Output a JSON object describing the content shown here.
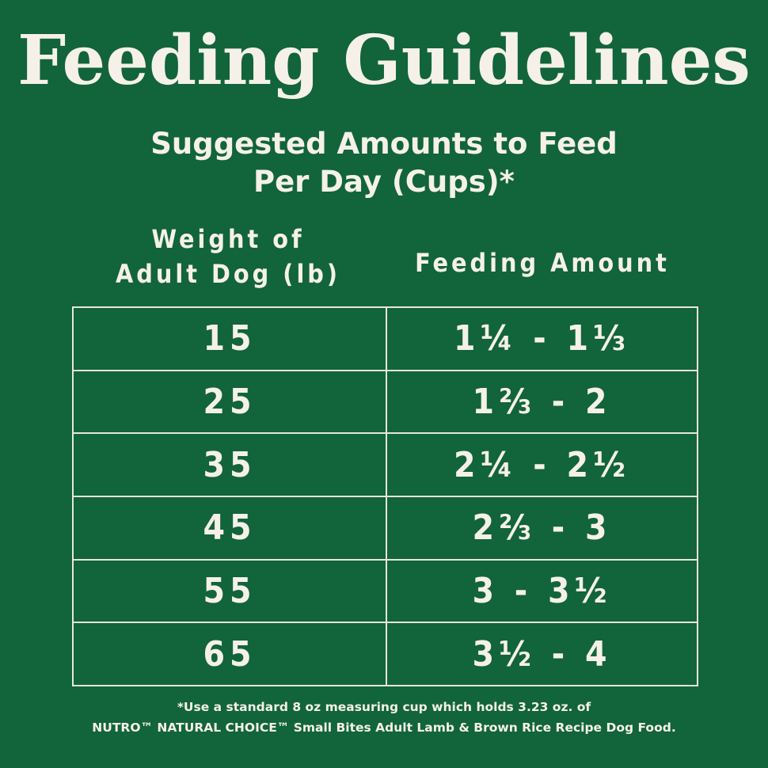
{
  "title": "Feeding Guidelines",
  "subtitle": {
    "line1": "Suggested Amounts to Feed",
    "line2": "Per Day (Cups)*"
  },
  "columns": {
    "weight_line1": "Weight of",
    "weight_line2": "Adult Dog (lb)",
    "amount": "Feeding Amount"
  },
  "rows": [
    {
      "weight": "15",
      "amount": "1¼ - 1⅓"
    },
    {
      "weight": "25",
      "amount": "1⅔ - 2"
    },
    {
      "weight": "35",
      "amount": "2¼ - 2½"
    },
    {
      "weight": "45",
      "amount": "2⅔ - 3"
    },
    {
      "weight": "55",
      "amount": "3 - 3½"
    },
    {
      "weight": "65",
      "amount": "3½ - 4"
    }
  ],
  "footnote": {
    "line1": "*Use a standard 8 oz measuring cup which holds 3.23 oz. of",
    "line2": "NUTRO™ NATURAL CHOICE™ Small Bites Adult Lamb & Brown Rice Recipe Dog Food."
  },
  "colors": {
    "background": "#12643a",
    "text": "#f5f1e8",
    "grid": "#e8e6dc"
  }
}
